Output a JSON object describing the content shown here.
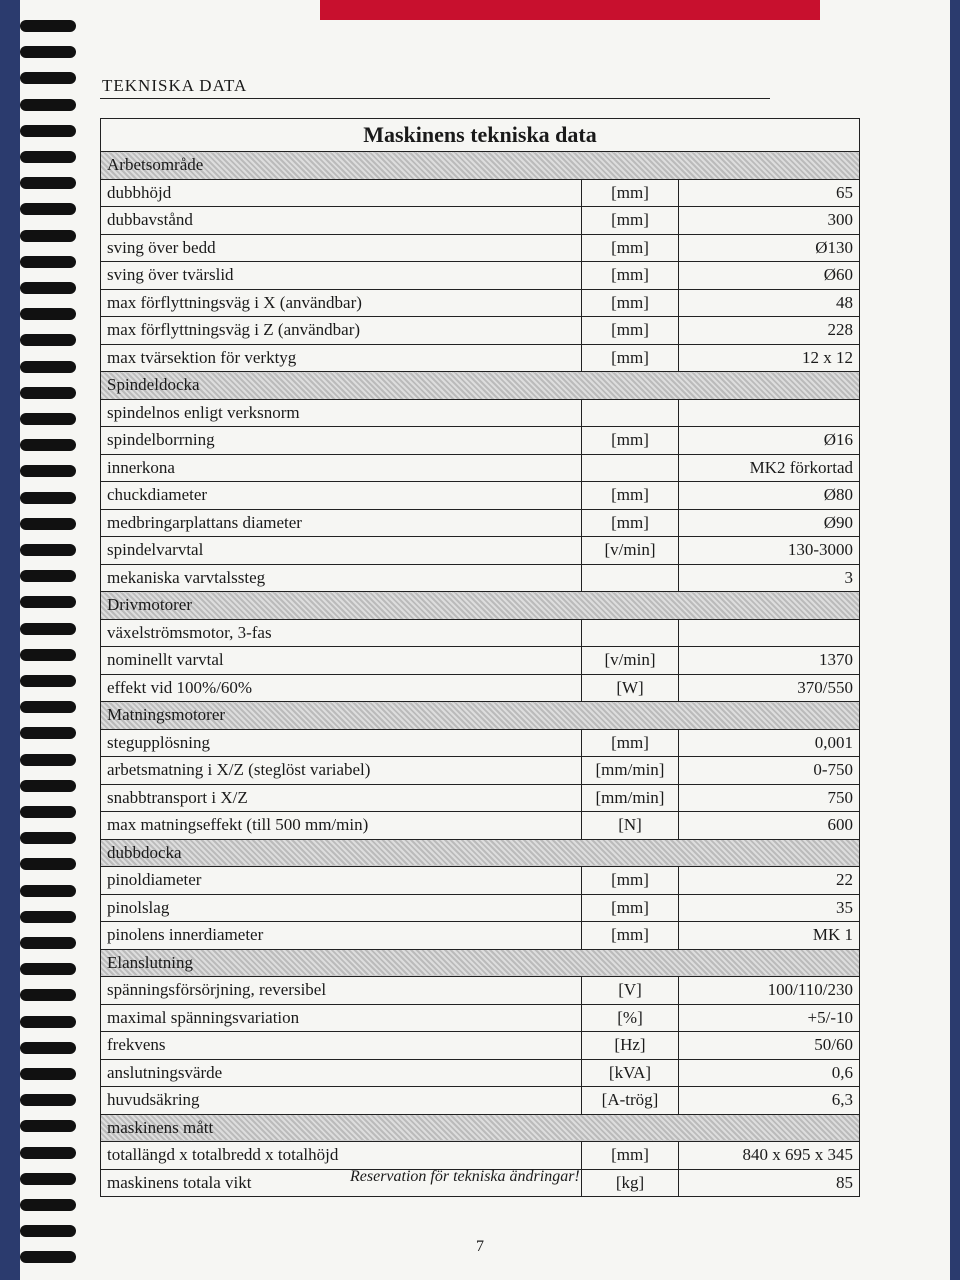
{
  "header": {
    "section": "TEKNISKA DATA",
    "title": "Maskinens tekniska data"
  },
  "table": {
    "sections": [
      {
        "name": "Arbetsområde",
        "rows": [
          {
            "label": "dubbhöjd",
            "unit": "[mm]",
            "value": "65"
          },
          {
            "label": "dubbavstånd",
            "unit": "[mm]",
            "value": "300"
          },
          {
            "label": "sving över bedd",
            "unit": "[mm]",
            "value": "Ø130"
          },
          {
            "label": "sving över tvärslid",
            "unit": "[mm]",
            "value": "Ø60"
          },
          {
            "label": "max förflyttningsväg i X (användbar)",
            "unit": "[mm]",
            "value": "48"
          },
          {
            "label": "max förflyttningsväg i Z (användbar)",
            "unit": "[mm]",
            "value": "228"
          },
          {
            "label": "max tvärsektion för verktyg",
            "unit": "[mm]",
            "value": "12 x 12"
          }
        ]
      },
      {
        "name": "Spindeldocka",
        "rows": [
          {
            "label": "spindelnos enligt verksnorm"
          },
          {
            "label": "spindelborrning",
            "unit": "[mm]",
            "value": "Ø16"
          },
          {
            "label": "innerkona",
            "value": "MK2 förkortad"
          },
          {
            "label": "chuckdiameter",
            "unit": "[mm]",
            "value": "Ø80"
          },
          {
            "label": "medbringarplattans diameter",
            "unit": "[mm]",
            "value": "Ø90"
          },
          {
            "label": "spindelvarvtal",
            "unit": "[v/min]",
            "value": "130-3000"
          },
          {
            "label": "mekaniska varvtalssteg",
            "value": "3"
          }
        ]
      },
      {
        "name": "Drivmotorer",
        "rows": [
          {
            "label": "växelströmsmotor, 3-fas"
          },
          {
            "label": "nominellt varvtal",
            "unit": "[v/min]",
            "value": "1370"
          },
          {
            "label": "effekt vid 100%/60%",
            "unit": "[W]",
            "value": "370/550"
          }
        ]
      },
      {
        "name": "Matningsmotorer",
        "rows": [
          {
            "label": "stegupplösning",
            "unit": "[mm]",
            "value": "0,001"
          },
          {
            "label": "arbetsmatning i X/Z (steglöst variabel)",
            "unit": "[mm/min]",
            "value": "0-750"
          },
          {
            "label": "snabbtransport i X/Z",
            "unit": "[mm/min]",
            "value": "750"
          },
          {
            "label": "max matningseffekt (till 500 mm/min)",
            "unit": "[N]",
            "value": "600"
          }
        ]
      },
      {
        "name": "dubbdocka",
        "rows": [
          {
            "label": "pinoldiameter",
            "unit": "[mm]",
            "value": "22"
          },
          {
            "label": "pinolslag",
            "unit": "[mm]",
            "value": "35"
          },
          {
            "label": "pinolens innerdiameter",
            "unit": "[mm]",
            "value": "MK 1"
          }
        ]
      },
      {
        "name": "Elanslutning",
        "rows": [
          {
            "label": "spänningsförsörjning, reversibel",
            "unit": "[V]",
            "value": "100/110/230"
          },
          {
            "label": "maximal spänningsvariation",
            "unit": "[%]",
            "value": "+5/-10"
          },
          {
            "label": "frekvens",
            "unit": "[Hz]",
            "value": "50/60"
          },
          {
            "label": "anslutningsvärde",
            "unit": "[kVA]",
            "value": "0,6"
          },
          {
            "label": "huvudsäkring",
            "unit": "[A-trög]",
            "value": "6,3"
          }
        ]
      },
      {
        "name": "maskinens mått",
        "rows": [
          {
            "label": "totallängd x totalbredd x totalhöjd",
            "unit": "[mm]",
            "value": "840 x 695 x 345"
          },
          {
            "label": "maskinens totala vikt",
            "unit": "[kg]",
            "value": "85"
          }
        ]
      }
    ]
  },
  "footer": {
    "note": "Reservation för tekniska ändringar!",
    "page": "7"
  }
}
